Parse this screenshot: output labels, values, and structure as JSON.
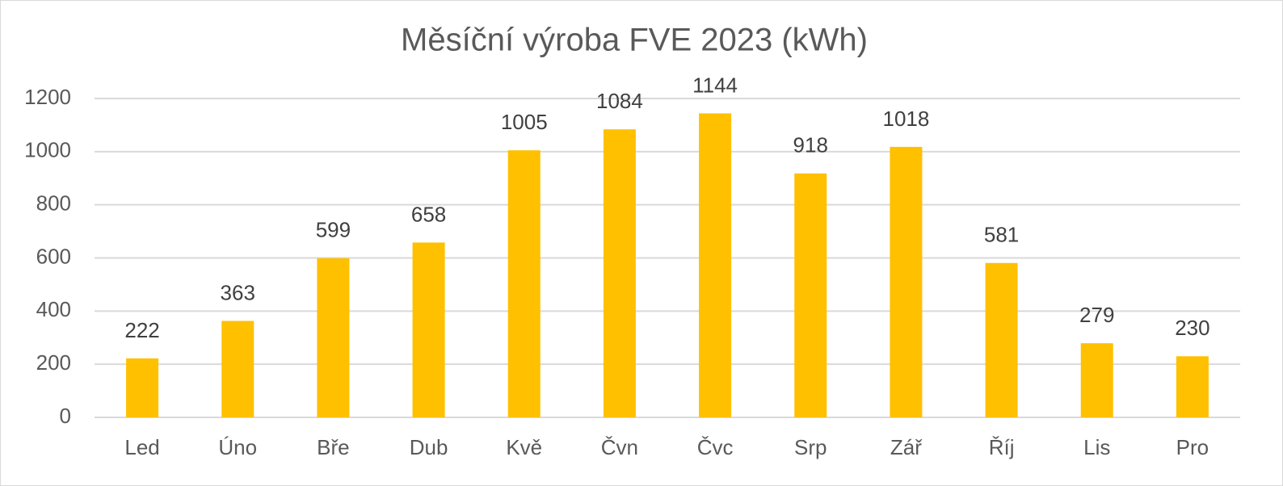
{
  "chart_data": {
    "type": "bar",
    "title": "Měsíční výroba FVE 2023 (kWh)",
    "categories": [
      "Led",
      "Úno",
      "Bře",
      "Dub",
      "Kvě",
      "Čvn",
      "Čvc",
      "Srp",
      "Zář",
      "Říj",
      "Lis",
      "Pro"
    ],
    "values": [
      222,
      363,
      599,
      658,
      1005,
      1084,
      1144,
      918,
      1018,
      581,
      279,
      230
    ],
    "color": "#ffc000",
    "ylim": [
      0,
      1200
    ],
    "yticks": [
      0,
      200,
      400,
      600,
      800,
      1000,
      1200
    ],
    "grid": true
  }
}
